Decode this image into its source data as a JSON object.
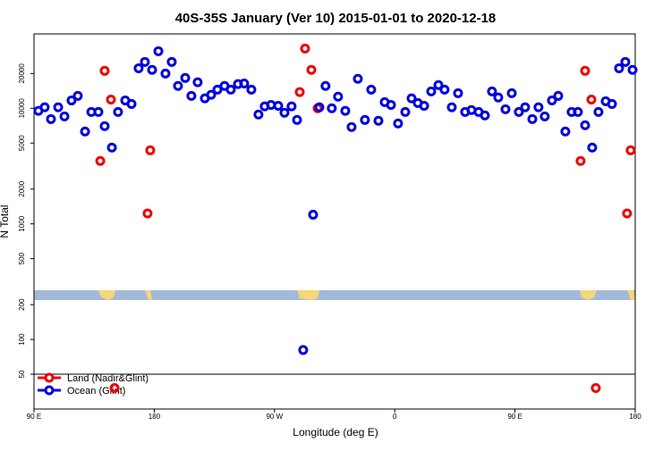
{
  "chart_data": {
    "type": "scatter",
    "title": "40S-35S January (Ver 10)   2015-01-01 to 2020-12-18",
    "x_label": "Longitude (deg E)",
    "y_label": "N Total",
    "xlim": [
      90,
      540
    ],
    "ylim": [
      25,
      44000
    ],
    "log_y": true,
    "legend": "lower left",
    "xticks": [
      {
        "value": 90,
        "label": "90 E"
      },
      180,
      {
        "value": 270,
        "label": "90 W"
      },
      {
        "value": 360,
        "label": "0"
      },
      {
        "value": 450,
        "label": "90 E"
      },
      {
        "value": 540,
        "label": "180"
      }
    ],
    "yticks": [
      50,
      100,
      200,
      500,
      1000,
      2000,
      5000,
      10000,
      20000
    ],
    "series": [
      {
        "name": "Land (Nadir&Glint)",
        "color": "#ee0000",
        "x": [
          139.6,
          142.9,
          147.6,
          150.3,
          175,
          177,
          288.9,
          292.9,
          297.6,
          302.3,
          499.1,
          502.5,
          507.2,
          510.5,
          533.9,
          536.6
        ],
        "values": [
          3500,
          21100,
          11900,
          38,
          1230,
          4330,
          13800,
          32900,
          21500,
          10000,
          3500,
          21100,
          11900,
          38,
          1230,
          4330
        ]
      },
      {
        "name": "Ocean (Glint)",
        "color": "#0000dd",
        "x": [
          93.3,
          98,
          102.7,
          108.1,
          112.8,
          118.1,
          122.8,
          128.2,
          132.9,
          138.2,
          142.9,
          148.3,
          152.9,
          158.3,
          163,
          168.3,
          173,
          178.4,
          183.1,
          188.4,
          193.1,
          197.8,
          203.2,
          207.8,
          212.5,
          217.9,
          222.6,
          227.3,
          232.6,
          237.3,
          242.7,
          247.3,
          252.7,
          258,
          262.7,
          267.4,
          272.8,
          277.5,
          282.8,
          286.9,
          291.5,
          298.9,
          303.6,
          308.2,
          312.9,
          317.6,
          323,
          327.7,
          332.4,
          337.7,
          342.4,
          347.8,
          352.5,
          357.2,
          362.5,
          367.9,
          372.6,
          377.3,
          382,
          387.3,
          392.7,
          397.3,
          402.7,
          407.4,
          412.7,
          417.4,
          422.8,
          427.5,
          432.8,
          437.5,
          442.9,
          447.6,
          452.9,
          457.6,
          463,
          467.6,
          472.3,
          477.7,
          482.4,
          487.7,
          492.4,
          497.1,
          502.5,
          507.8,
          512.5,
          517.9,
          522.6,
          527.9,
          532.6,
          538
        ],
        "values": [
          9500,
          10200,
          8070,
          10200,
          8510,
          11700,
          12800,
          6300,
          9300,
          9300,
          7010,
          4570,
          9300,
          11700,
          10900,
          22200,
          25200,
          21500,
          31200,
          20000,
          25200,
          15600,
          18300,
          12800,
          16800,
          12200,
          13100,
          14500,
          15600,
          14500,
          16200,
          16400,
          14500,
          8830,
          10400,
          10700,
          10500,
          9150,
          10400,
          7930,
          81,
          1200,
          10200,
          15600,
          10000,
          12600,
          9500,
          6890,
          18000,
          7930,
          14500,
          7800,
          11300,
          10700,
          7390,
          9300,
          12200,
          11100,
          10500,
          14000,
          15900,
          14500,
          10200,
          13500,
          9300,
          9650,
          9300,
          8670,
          14000,
          12400,
          9800,
          13500,
          9300,
          10200,
          8070,
          10200,
          8510,
          11700,
          12800,
          6300,
          9300,
          9300,
          7130,
          4570,
          9300,
          11500,
          10900,
          22200,
          25200,
          21500
        ]
      }
    ]
  }
}
